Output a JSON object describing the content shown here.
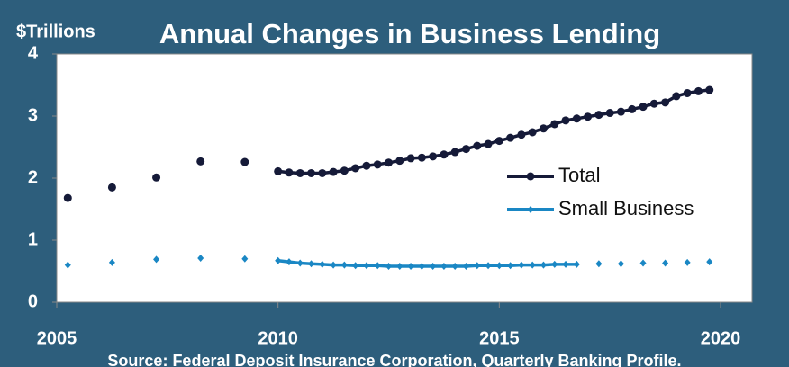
{
  "chart_data": {
    "type": "line",
    "title": "Annual Changes in Business Lending",
    "y_label": "$Trillions",
    "source": "Source: Federal Deposit Insurance Corporation, Quarterly Banking Profile.",
    "xlim": [
      2005,
      2021.5
    ],
    "xticks": [
      2005,
      2010,
      2015,
      2020
    ],
    "ylim": [
      0,
      4
    ],
    "yticks": [
      0,
      1,
      2,
      3,
      4
    ],
    "legend": "center-right",
    "series": [
      {
        "name": "Total",
        "color": "#151a38",
        "marker": "circle",
        "x": [
          2005.25,
          null,
          2006.25,
          null,
          2007.25,
          null,
          2008.25,
          null,
          2009.25,
          null,
          2010,
          2010.25,
          2010.5,
          2010.75,
          2011,
          2011.25,
          2011.5,
          2011.75,
          2012,
          2012.25,
          2012.5,
          2012.75,
          2013,
          2013.25,
          2013.5,
          2013.75,
          2014,
          2014.25,
          2014.5,
          2014.75,
          2015,
          2015.25,
          2015.5,
          2015.75,
          2016,
          2016.25,
          2016.5,
          2016.75,
          2017,
          2017.25,
          2017.5,
          2017.75,
          2018,
          2018.25,
          2018.5,
          2018.75,
          2019,
          2019.25,
          2019.5,
          2019.75
        ],
        "values": [
          1.68,
          null,
          1.85,
          null,
          2.01,
          null,
          2.27,
          null,
          2.26,
          null,
          2.11,
          2.09,
          2.08,
          2.08,
          2.08,
          2.1,
          2.12,
          2.16,
          2.2,
          2.22,
          2.25,
          2.28,
          2.32,
          2.33,
          2.35,
          2.38,
          2.42,
          2.47,
          2.52,
          2.55,
          2.6,
          2.65,
          2.7,
          2.74,
          2.8,
          2.87,
          2.93,
          2.96,
          2.99,
          3.02,
          3.05,
          3.07,
          3.11,
          3.15,
          3.2,
          3.22,
          3.32,
          3.37,
          3.4,
          3.42
        ]
      },
      {
        "name": "Small Business",
        "color": "#1a87c4",
        "marker": "diamond",
        "x": [
          2005.25,
          null,
          2006.25,
          null,
          2007.25,
          null,
          2008.25,
          null,
          2009.25,
          null,
          2010,
          2010.25,
          2010.5,
          2010.75,
          2011,
          2011.25,
          2011.5,
          2011.75,
          2012,
          2012.25,
          2012.5,
          2012.75,
          2013,
          2013.25,
          2013.5,
          2013.75,
          2014,
          2014.25,
          2014.5,
          2014.75,
          2015,
          2015.25,
          2015.5,
          2015.75,
          2016,
          2016.25,
          2016.5,
          2016.75,
          null,
          2017.25,
          null,
          2017.75,
          null,
          2018.25,
          null,
          2018.75,
          null,
          2019.25,
          null,
          2019.75
        ],
        "values": [
          0.6,
          null,
          0.64,
          null,
          0.69,
          null,
          0.71,
          null,
          0.7,
          null,
          0.67,
          0.65,
          0.63,
          0.62,
          0.61,
          0.6,
          0.6,
          0.59,
          0.59,
          0.59,
          0.58,
          0.58,
          0.58,
          0.58,
          0.58,
          0.58,
          0.58,
          0.58,
          0.59,
          0.59,
          0.59,
          0.59,
          0.6,
          0.6,
          0.6,
          0.61,
          0.61,
          0.61,
          null,
          0.62,
          null,
          0.62,
          null,
          0.63,
          null,
          0.63,
          null,
          0.64,
          null,
          0.65
        ]
      }
    ]
  }
}
